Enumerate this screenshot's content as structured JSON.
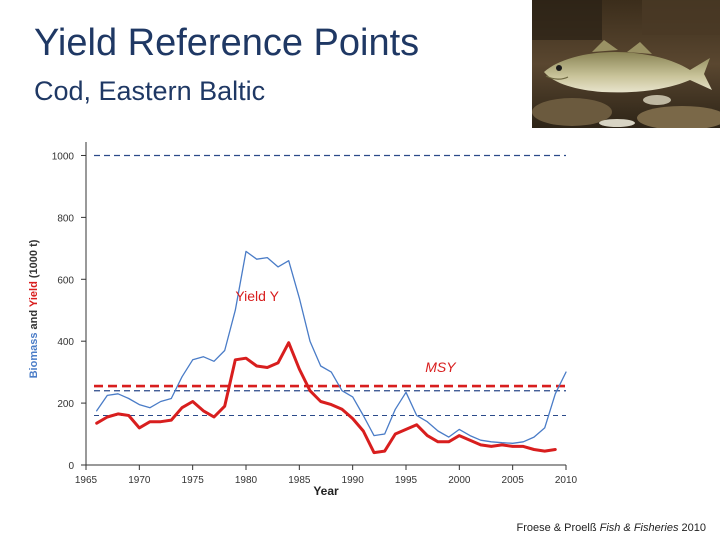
{
  "slide": {
    "title": "Yield Reference Points",
    "subtitle": "Cod, Eastern Baltic",
    "citation_prefix": "Froese & Proelß ",
    "citation_journal": "Fish & Fisheries",
    "citation_year": " 2010"
  },
  "photo": {
    "icon": "cod-fish-photo"
  },
  "colors": {
    "title": "#1f3864",
    "biomass": "#4a7cc7",
    "yield": "#d81e1e",
    "reference": "#2b4a8a",
    "axis": "#333333"
  },
  "chart_data": {
    "type": "line",
    "xlabel": "Year",
    "ylabel_parts": [
      "Biomass",
      " and ",
      "Yield",
      " (1000 t)"
    ],
    "xlim": [
      1965,
      2010
    ],
    "ylim": [
      0,
      1050
    ],
    "x_ticks": [
      1965,
      1970,
      1975,
      1980,
      1985,
      1990,
      1995,
      2000,
      2005,
      2010
    ],
    "y_ticks": [
      0,
      200,
      400,
      600,
      800,
      1000
    ],
    "grid": false,
    "series": [
      {
        "name": "Biomass",
        "color": "#4a7cc7",
        "x": [
          1966,
          1967,
          1968,
          1969,
          1970,
          1971,
          1972,
          1973,
          1974,
          1975,
          1976,
          1977,
          1978,
          1979,
          1980,
          1981,
          1982,
          1983,
          1984,
          1985,
          1986,
          1987,
          1988,
          1989,
          1990,
          1991,
          1992,
          1993,
          1994,
          1995,
          1996,
          1997,
          1998,
          1999,
          2000,
          2001,
          2002,
          2003,
          2004,
          2005,
          2006,
          2007,
          2008,
          2009,
          2010
        ],
        "y": [
          175,
          225,
          230,
          215,
          195,
          185,
          205,
          215,
          285,
          340,
          350,
          335,
          370,
          500,
          690,
          665,
          670,
          640,
          660,
          540,
          400,
          320,
          300,
          240,
          220,
          160,
          95,
          100,
          180,
          235,
          160,
          140,
          110,
          90,
          115,
          95,
          80,
          75,
          72,
          70,
          75,
          90,
          120,
          230,
          300
        ]
      },
      {
        "name": "Yield Y",
        "color": "#d81e1e",
        "x": [
          1966,
          1967,
          1968,
          1969,
          1970,
          1971,
          1972,
          1973,
          1974,
          1975,
          1976,
          1977,
          1978,
          1979,
          1980,
          1981,
          1982,
          1983,
          1984,
          1985,
          1986,
          1987,
          1988,
          1989,
          1990,
          1991,
          1992,
          1993,
          1994,
          1995,
          1996,
          1997,
          1998,
          1999,
          2000,
          2001,
          2002,
          2003,
          2004,
          2005,
          2006,
          2007,
          2008,
          2009
        ],
        "y": [
          135,
          155,
          165,
          160,
          120,
          140,
          140,
          145,
          185,
          205,
          175,
          155,
          190,
          340,
          345,
          320,
          315,
          330,
          395,
          310,
          240,
          205,
          195,
          180,
          150,
          110,
          40,
          45,
          100,
          115,
          130,
          95,
          75,
          75,
          95,
          80,
          65,
          60,
          65,
          60,
          60,
          50,
          45,
          50
        ]
      }
    ],
    "reference_lines": [
      {
        "label": "",
        "value": 1000,
        "color": "#2b4a8a",
        "style": "dashed"
      },
      {
        "label": "MSY",
        "value": 255,
        "color": "#d81e1e",
        "style": "dashed-bold"
      },
      {
        "label": "",
        "value": 240,
        "color": "#2b4a8a",
        "style": "dashed"
      },
      {
        "label": "",
        "value": 160,
        "color": "#2b4a8a",
        "style": "dashed-thin"
      }
    ],
    "annotations": [
      {
        "text": "Yield Y",
        "x": 1979,
        "y": 530
      },
      {
        "text": "MSY",
        "x": 1996.8,
        "y": 300
      }
    ]
  }
}
